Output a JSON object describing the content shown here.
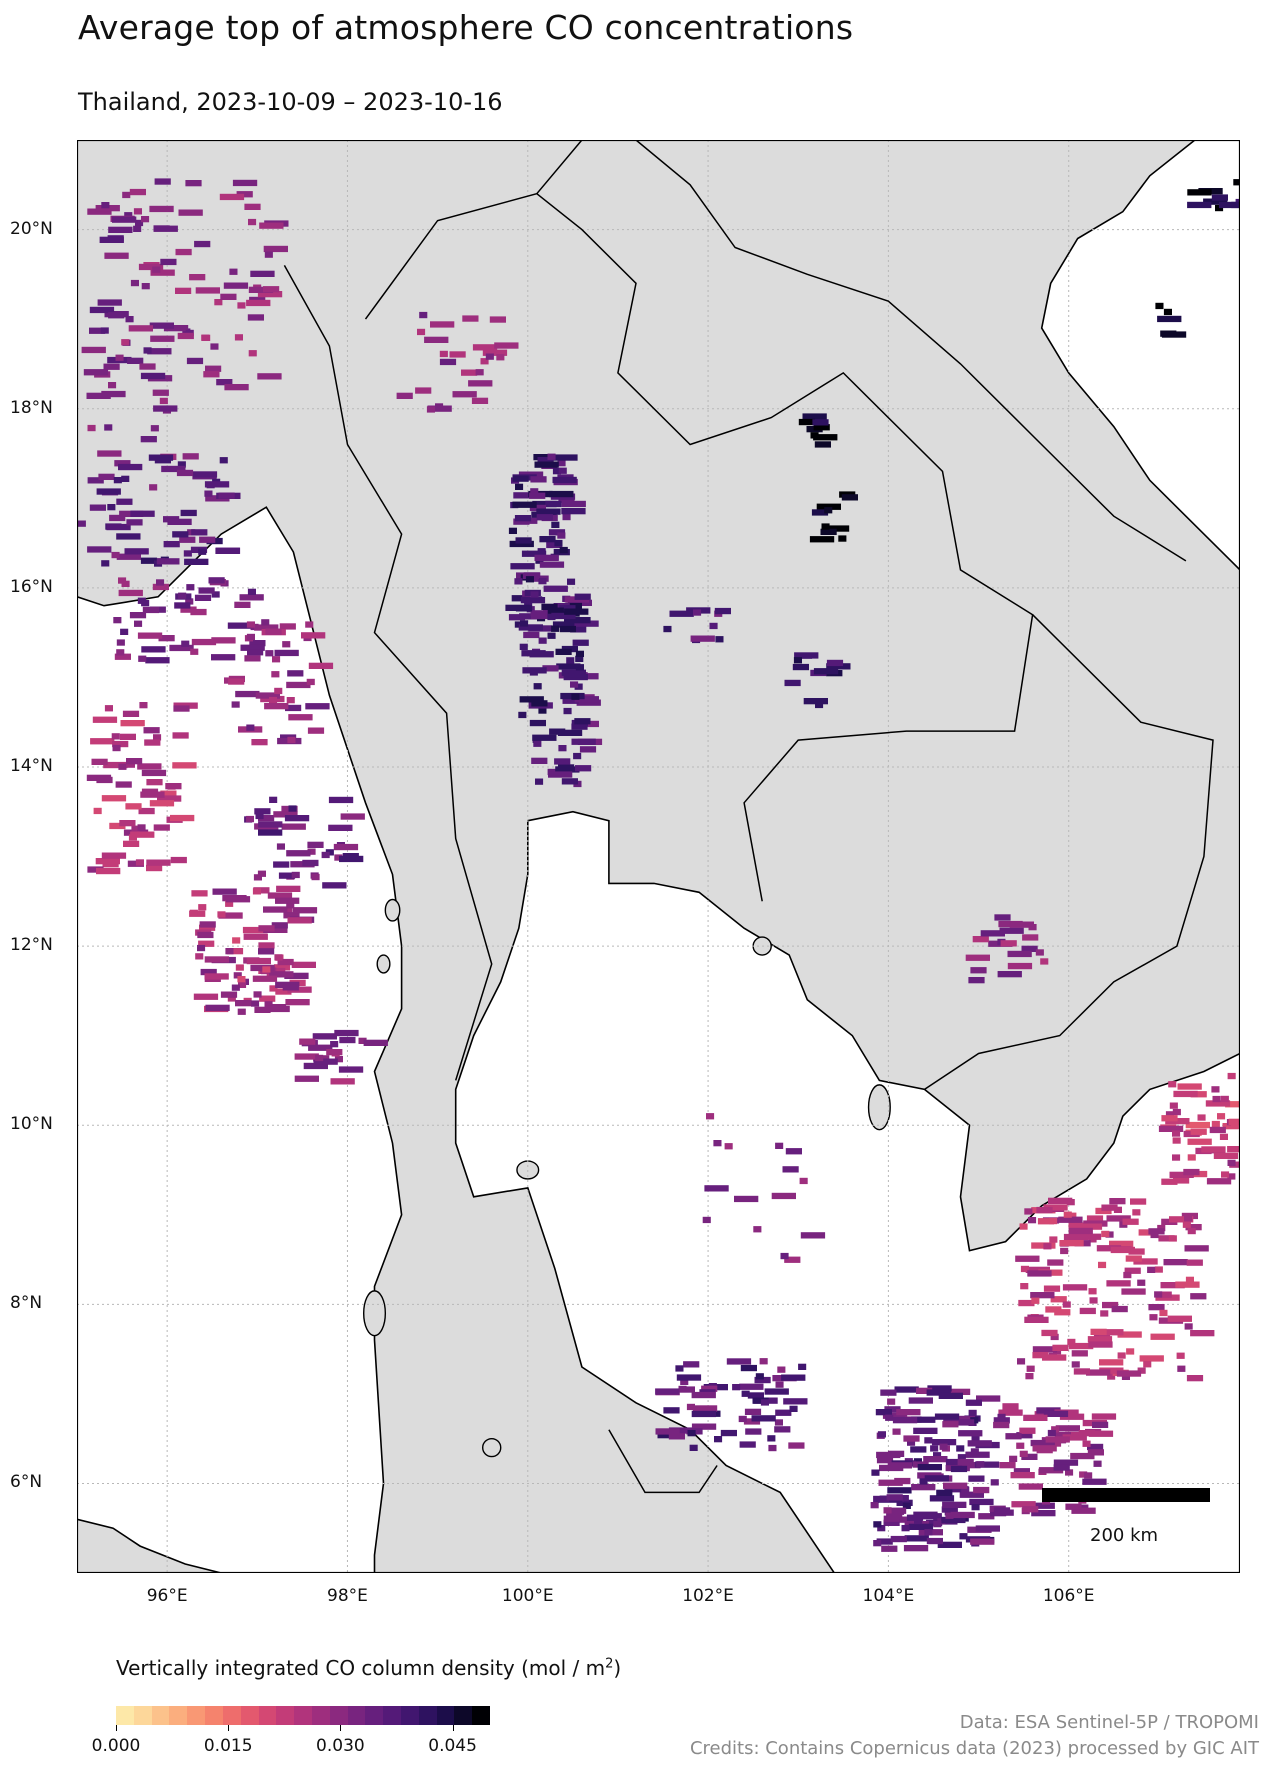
{
  "title": "Average top of atmosphere CO concentrations",
  "subtitle": "Thailand, 2023-10-09 – 2023-10-16",
  "map": {
    "lat_labels": [
      "20°N",
      "18°N",
      "16°N",
      "14°N",
      "12°N",
      "10°N",
      "8°N",
      "6°N"
    ],
    "lon_labels": [
      "96°E",
      "98°E",
      "100°E",
      "102°E",
      "104°E",
      "106°E"
    ],
    "extent": {
      "lon_min": 95.0,
      "lon_max": 107.9,
      "lat_min": 5.0,
      "lat_max": 21.0
    },
    "scale_bar_label": "200 km",
    "land_color": "#dcdcdc",
    "water_color": "#ffffff"
  },
  "colorbar": {
    "label": "Vertically integrated CO column density (mol / m",
    "label_sup": "2",
    "label_end": ")",
    "ticks": [
      "0.000",
      "0.015",
      "0.030",
      "0.045"
    ],
    "range": [
      0.0,
      0.05
    ],
    "colors": [
      "#fde8a8",
      "#fdd79a",
      "#fcc28b",
      "#fbae7e",
      "#f99874",
      "#f5836d",
      "#ee6d6c",
      "#e3596e",
      "#d44873",
      "#c33c78",
      "#b1347c",
      "#9e2e7e",
      "#8b297f",
      "#78247f",
      "#661f7d",
      "#541a78",
      "#41166f",
      "#2e1260",
      "#1c0d4a",
      "#0d0829",
      "#000004"
    ]
  },
  "credits": {
    "line1": "Data: ESA Sentinel-5P / TROPOMI",
    "line2": "Credits: Contains Copernicus data (2023) processed by GIC AIT"
  }
}
